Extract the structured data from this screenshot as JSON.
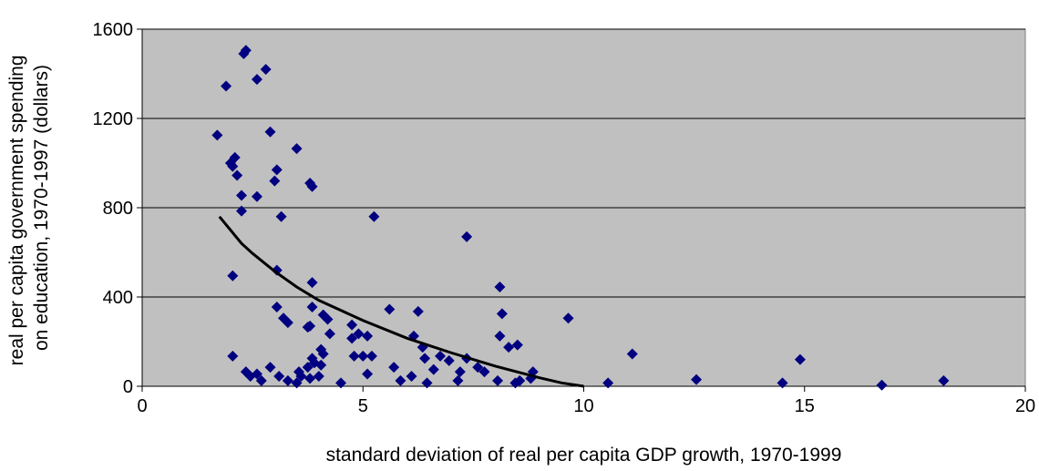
{
  "chart_data": {
    "type": "scatter",
    "title": "",
    "xlabel": "standard deviation of real per capita GDP growth, 1970-1999",
    "ylabel_lines": [
      "real per capita government spending",
      "on education, 1970-1997 (dollars)"
    ],
    "xlim": [
      0,
      20
    ],
    "ylim": [
      0,
      1600
    ],
    "xticks": [
      0,
      5,
      10,
      15,
      20
    ],
    "yticks": [
      0,
      400,
      800,
      1200,
      1600
    ],
    "xtick_labels": [
      "0",
      "5",
      "10",
      "15",
      "20"
    ],
    "ytick_labels": [
      "0",
      "400",
      "800",
      "1200",
      "1600"
    ],
    "grid": "horizontal",
    "plot_background": "#c0c0c0",
    "marker_color": "#000080",
    "marker": "diamond",
    "legend": "none",
    "points": [
      [
        1.7,
        1125
      ],
      [
        1.9,
        1345
      ],
      [
        2.0,
        1000
      ],
      [
        2.1,
        1025
      ],
      [
        2.05,
        985
      ],
      [
        2.15,
        945
      ],
      [
        2.3,
        1490
      ],
      [
        2.35,
        1505
      ],
      [
        2.6,
        1375
      ],
      [
        2.8,
        1420
      ],
      [
        2.9,
        1140
      ],
      [
        3.05,
        970
      ],
      [
        3.0,
        920
      ],
      [
        2.25,
        855
      ],
      [
        2.6,
        850
      ],
      [
        2.25,
        785
      ],
      [
        3.15,
        760
      ],
      [
        3.5,
        1065
      ],
      [
        3.8,
        910
      ],
      [
        3.85,
        895
      ],
      [
        5.25,
        760
      ],
      [
        7.35,
        670
      ],
      [
        2.05,
        495
      ],
      [
        3.05,
        520
      ],
      [
        3.85,
        465
      ],
      [
        3.85,
        355
      ],
      [
        3.05,
        355
      ],
      [
        3.2,
        305
      ],
      [
        3.3,
        285
      ],
      [
        3.75,
        265
      ],
      [
        3.8,
        270
      ],
      [
        4.1,
        320
      ],
      [
        4.2,
        300
      ],
      [
        4.25,
        235
      ],
      [
        4.05,
        165
      ],
      [
        4.1,
        145
      ],
      [
        4.05,
        95
      ],
      [
        4.0,
        45
      ],
      [
        3.85,
        125
      ],
      [
        3.9,
        105
      ],
      [
        3.75,
        85
      ],
      [
        3.8,
        35
      ],
      [
        3.6,
        45
      ],
      [
        3.55,
        65
      ],
      [
        3.5,
        15
      ],
      [
        3.3,
        25
      ],
      [
        3.1,
        45
      ],
      [
        2.9,
        85
      ],
      [
        2.7,
        25
      ],
      [
        2.6,
        55
      ],
      [
        2.45,
        45
      ],
      [
        2.35,
        65
      ],
      [
        2.05,
        135
      ],
      [
        4.5,
        15
      ],
      [
        4.75,
        275
      ],
      [
        4.75,
        215
      ],
      [
        4.9,
        235
      ],
      [
        5.1,
        225
      ],
      [
        5.0,
        135
      ],
      [
        5.2,
        135
      ],
      [
        5.1,
        55
      ],
      [
        4.8,
        135
      ],
      [
        5.6,
        345
      ],
      [
        5.7,
        85
      ],
      [
        5.85,
        25
      ],
      [
        6.1,
        45
      ],
      [
        6.15,
        225
      ],
      [
        6.25,
        335
      ],
      [
        6.35,
        175
      ],
      [
        6.4,
        125
      ],
      [
        6.45,
        15
      ],
      [
        6.6,
        75
      ],
      [
        6.75,
        135
      ],
      [
        6.95,
        115
      ],
      [
        7.15,
        25
      ],
      [
        7.2,
        65
      ],
      [
        7.35,
        125
      ],
      [
        7.6,
        85
      ],
      [
        7.75,
        65
      ],
      [
        8.05,
        25
      ],
      [
        8.1,
        445
      ],
      [
        8.15,
        325
      ],
      [
        8.1,
        225
      ],
      [
        8.3,
        175
      ],
      [
        8.5,
        185
      ],
      [
        8.45,
        15
      ],
      [
        8.55,
        25
      ],
      [
        8.8,
        35
      ],
      [
        8.85,
        65
      ],
      [
        9.65,
        305
      ],
      [
        10.55,
        15
      ],
      [
        11.1,
        145
      ],
      [
        12.55,
        30
      ],
      [
        14.5,
        15
      ],
      [
        14.9,
        120
      ],
      [
        16.75,
        5
      ],
      [
        18.15,
        25
      ]
    ],
    "trendline": [
      [
        1.75,
        760
      ],
      [
        2.0,
        700
      ],
      [
        2.25,
        640
      ],
      [
        2.5,
        595
      ],
      [
        3.0,
        515
      ],
      [
        3.5,
        445
      ],
      [
        4.0,
        385
      ],
      [
        5.0,
        295
      ],
      [
        6.0,
        215
      ],
      [
        7.0,
        150
      ],
      [
        8.0,
        90
      ],
      [
        9.0,
        38
      ],
      [
        9.5,
        15
      ],
      [
        10.0,
        0
      ]
    ]
  }
}
